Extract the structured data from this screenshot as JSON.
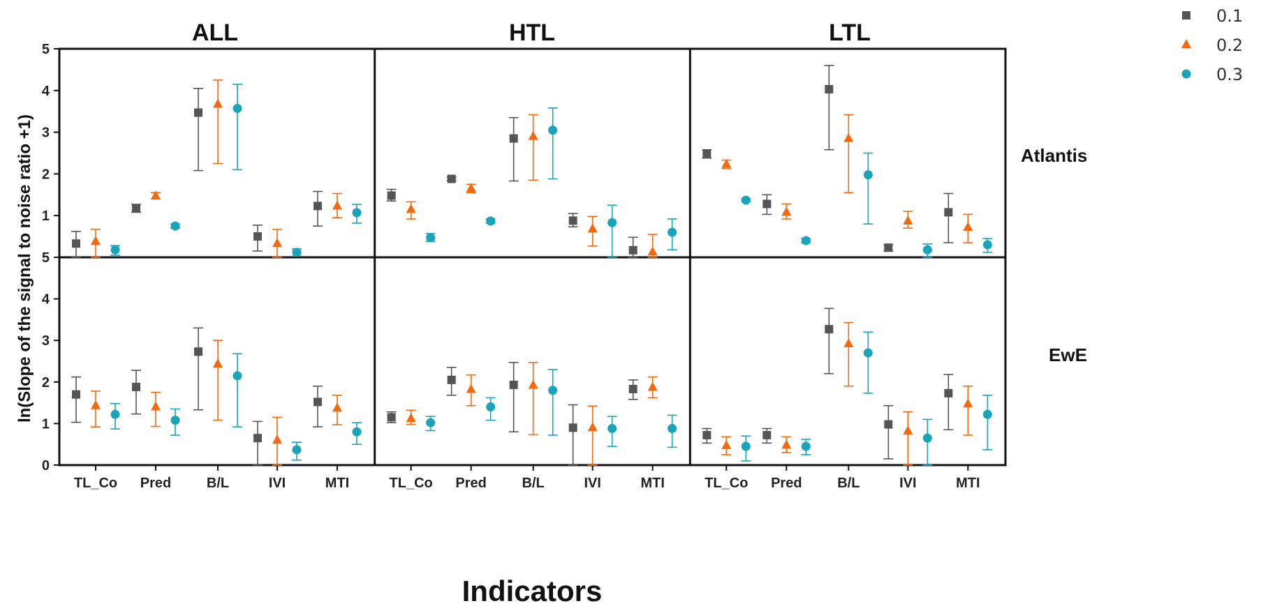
{
  "chart_data": {
    "type": "scatter",
    "description_free": true,
    "columns": [
      "ALL",
      "HTL",
      "LTL"
    ],
    "rows": [
      "Atlantis",
      "EwE"
    ],
    "categories": [
      "TL_Co",
      "Pred",
      "B/L",
      "IVI",
      "MTI"
    ],
    "xlabel": "Indicators",
    "ylabel": "ln(Slope of the signal to noise ratio +1)",
    "atlantis_yticks": [
      "5",
      "4",
      "3",
      "2",
      "1",
      "5"
    ],
    "ewe_yticks": [
      "4",
      "3",
      "2",
      "1",
      "0"
    ],
    "ylim": [
      0,
      5
    ],
    "legend": {
      "position": "top-right",
      "items": [
        {
          "label": "0.1",
          "color": "#555555",
          "marker": "square"
        },
        {
          "label": "0.2",
          "color": "#F26A10",
          "marker": "triangle"
        },
        {
          "label": "0.3",
          "color": "#1BA3B8",
          "marker": "circle"
        }
      ]
    },
    "series": [
      {
        "name": "0.1",
        "color": "#555555",
        "marker": "square"
      },
      {
        "name": "0.2",
        "color": "#F26A10",
        "marker": "triangle"
      },
      {
        "name": "0.3",
        "color": "#1BA3B8",
        "marker": "circle"
      }
    ],
    "panels": {
      "Atlantis": {
        "ALL": [
          [
            [
              0.33,
              0.0,
              0.62
            ],
            [
              0.38,
              0.0,
              0.67
            ],
            [
              0.18,
              0.05,
              0.28
            ]
          ],
          [
            [
              1.17,
              1.08,
              1.27
            ],
            [
              1.47,
              1.4,
              1.55
            ],
            [
              0.75,
              0.7,
              0.8
            ]
          ],
          [
            [
              3.47,
              2.08,
              4.05
            ],
            [
              3.67,
              2.25,
              4.25
            ],
            [
              3.57,
              2.1,
              4.15
            ]
          ],
          [
            [
              0.5,
              0.15,
              0.77
            ],
            [
              0.33,
              0.0,
              0.67
            ],
            [
              0.12,
              0.03,
              0.2
            ]
          ],
          [
            [
              1.23,
              0.75,
              1.58
            ],
            [
              1.23,
              0.95,
              1.53
            ],
            [
              1.07,
              0.82,
              1.27
            ]
          ]
        ],
        "HTL": [
          [
            [
              1.48,
              1.35,
              1.63
            ],
            [
              1.15,
              0.92,
              1.33
            ],
            [
              0.47,
              0.38,
              0.57
            ]
          ],
          [
            [
              1.88,
              1.84,
              1.92
            ],
            [
              1.65,
              1.55,
              1.75
            ],
            [
              0.87,
              0.82,
              0.92
            ]
          ],
          [
            [
              2.85,
              1.83,
              3.35
            ],
            [
              2.9,
              1.85,
              3.42
            ],
            [
              3.05,
              1.88,
              3.58
            ]
          ],
          [
            [
              0.88,
              0.73,
              1.05
            ],
            [
              0.68,
              0.27,
              0.98
            ],
            [
              0.83,
              0.0,
              1.25
            ]
          ],
          [
            [
              0.17,
              0.0,
              0.48
            ],
            [
              0.13,
              0.0,
              0.55
            ],
            [
              0.6,
              0.18,
              0.92
            ]
          ]
        ],
        "LTL": [
          [
            [
              2.48,
              2.38,
              2.58
            ],
            [
              2.23,
              2.13,
              2.33
            ],
            [
              1.37,
              1.34,
              1.4
            ]
          ],
          [
            [
              1.28,
              1.03,
              1.5
            ],
            [
              1.08,
              0.92,
              1.28
            ],
            [
              0.4,
              0.35,
              0.45
            ]
          ],
          [
            [
              4.03,
              2.58,
              4.6
            ],
            [
              2.85,
              1.55,
              3.42
            ],
            [
              1.98,
              0.8,
              2.5
            ]
          ],
          [
            [
              0.23,
              0.15,
              0.3
            ],
            [
              0.87,
              0.7,
              1.1
            ],
            [
              0.18,
              0.0,
              0.32
            ]
          ],
          [
            [
              1.08,
              0.35,
              1.53
            ],
            [
              0.72,
              0.35,
              1.03
            ],
            [
              0.3,
              0.12,
              0.45
            ]
          ]
        ]
      },
      "EwE": {
        "ALL": [
          [
            [
              1.7,
              1.03,
              2.12
            ],
            [
              1.43,
              0.92,
              1.78
            ],
            [
              1.22,
              0.87,
              1.48
            ]
          ],
          [
            [
              1.88,
              1.23,
              2.28
            ],
            [
              1.4,
              0.93,
              1.75
            ],
            [
              1.08,
              0.72,
              1.35
            ]
          ],
          [
            [
              2.73,
              1.33,
              3.3
            ],
            [
              2.43,
              1.08,
              3.0
            ],
            [
              2.15,
              0.92,
              2.68
            ]
          ],
          [
            [
              0.65,
              0.0,
              1.05
            ],
            [
              0.6,
              0.0,
              1.15
            ],
            [
              0.37,
              0.12,
              0.55
            ]
          ],
          [
            [
              1.52,
              0.92,
              1.9
            ],
            [
              1.37,
              0.97,
              1.68
            ],
            [
              0.8,
              0.5,
              1.02
            ]
          ]
        ],
        "HTL": [
          [
            [
              1.15,
              1.02,
              1.28
            ],
            [
              1.12,
              0.98,
              1.32
            ],
            [
              1.02,
              0.83,
              1.17
            ]
          ],
          [
            [
              2.05,
              1.68,
              2.35
            ],
            [
              1.82,
              1.43,
              2.17
            ],
            [
              1.4,
              1.08,
              1.62
            ]
          ],
          [
            [
              1.93,
              0.8,
              2.47
            ],
            [
              1.92,
              0.73,
              2.47
            ],
            [
              1.8,
              0.72,
              2.3
            ]
          ],
          [
            [
              0.9,
              0.0,
              1.45
            ],
            [
              0.9,
              0.0,
              1.42
            ],
            [
              0.88,
              0.45,
              1.17
            ]
          ],
          [
            [
              1.83,
              1.58,
              2.05
            ],
            [
              1.87,
              1.62,
              2.12
            ],
            [
              0.88,
              0.43,
              1.2
            ]
          ]
        ],
        "LTL": [
          [
            [
              0.72,
              0.53,
              0.88
            ],
            [
              0.47,
              0.25,
              0.68
            ],
            [
              0.45,
              0.1,
              0.7
            ]
          ],
          [
            [
              0.72,
              0.53,
              0.88
            ],
            [
              0.48,
              0.3,
              0.68
            ],
            [
              0.45,
              0.25,
              0.62
            ]
          ],
          [
            [
              3.27,
              2.2,
              3.77
            ],
            [
              2.92,
              1.9,
              3.43
            ],
            [
              2.7,
              1.73,
              3.2
            ]
          ],
          [
            [
              0.98,
              0.15,
              1.43
            ],
            [
              0.82,
              0.0,
              1.28
            ],
            [
              0.65,
              0.0,
              1.1
            ]
          ],
          [
            [
              1.73,
              0.85,
              2.18
            ],
            [
              1.47,
              0.72,
              1.9
            ],
            [
              1.22,
              0.37,
              1.68
            ]
          ]
        ]
      }
    }
  }
}
